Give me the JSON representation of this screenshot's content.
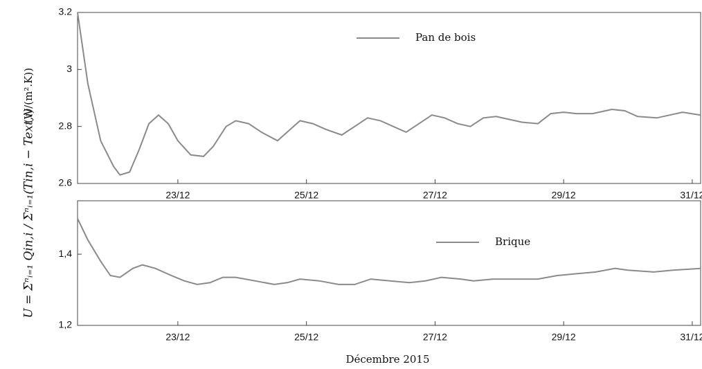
{
  "xlabel": "Décembre 2015",
  "ylabel": "U = Σⁿᵢ₌₁ Qin,i / Σⁿᵢ₌₁(Tin,i − Text,i)",
  "yunit": "(W/(m².K))",
  "chart_data": [
    {
      "type": "line",
      "xlim": [
        21.44,
        31.13
      ],
      "xticks": [
        {
          "value": 23,
          "label": "23/12"
        },
        {
          "value": 25,
          "label": "25/12"
        },
        {
          "value": 27,
          "label": "27/12"
        },
        {
          "value": 29,
          "label": "29/12"
        },
        {
          "value": 31,
          "label": "31/12"
        }
      ],
      "ylim": [
        2.6,
        3.2
      ],
      "yticks": [
        2.6,
        2.8,
        3,
        3.2
      ],
      "series": [
        {
          "name": "Pan de bois",
          "color": "#8a8a8a",
          "x": [
            21.44,
            21.6,
            21.8,
            22.0,
            22.1,
            22.25,
            22.4,
            22.55,
            22.7,
            22.85,
            23.0,
            23.2,
            23.4,
            23.55,
            23.75,
            23.9,
            24.1,
            24.3,
            24.55,
            24.75,
            24.9,
            25.1,
            25.3,
            25.55,
            25.75,
            25.95,
            26.15,
            26.35,
            26.55,
            26.75,
            26.95,
            27.15,
            27.35,
            27.55,
            27.75,
            27.95,
            28.15,
            28.35,
            28.6,
            28.8,
            29.0,
            29.2,
            29.45,
            29.75,
            29.95,
            30.15,
            30.45,
            30.65,
            30.85,
            31.13
          ],
          "values": [
            3.2,
            2.95,
            2.75,
            2.66,
            2.63,
            2.64,
            2.72,
            2.81,
            2.84,
            2.81,
            2.75,
            2.7,
            2.695,
            2.73,
            2.8,
            2.82,
            2.81,
            2.78,
            2.75,
            2.79,
            2.82,
            2.81,
            2.79,
            2.77,
            2.8,
            2.83,
            2.82,
            2.8,
            2.78,
            2.81,
            2.84,
            2.83,
            2.81,
            2.8,
            2.83,
            2.835,
            2.825,
            2.815,
            2.81,
            2.845,
            2.85,
            2.845,
            2.845,
            2.86,
            2.855,
            2.835,
            2.83,
            2.84,
            2.85,
            2.84
          ]
        }
      ]
    },
    {
      "type": "line",
      "xlim": [
        21.44,
        31.13
      ],
      "xticks": [
        {
          "value": 23,
          "label": "23/12"
        },
        {
          "value": 25,
          "label": "25/12"
        },
        {
          "value": 27,
          "label": "27/12"
        },
        {
          "value": 29,
          "label": "29/12"
        },
        {
          "value": 31,
          "label": "31/12"
        }
      ],
      "ylim": [
        1.2,
        1.55
      ],
      "yticks": [
        {
          "value": 1.2,
          "label": "1,2"
        },
        {
          "value": 1.4,
          "label": "1,4"
        }
      ],
      "series": [
        {
          "name": "Brique",
          "color": "#8a8a8a",
          "x": [
            21.44,
            21.6,
            21.8,
            21.95,
            22.1,
            22.3,
            22.45,
            22.65,
            22.9,
            23.1,
            23.3,
            23.5,
            23.7,
            23.9,
            24.2,
            24.5,
            24.7,
            24.9,
            25.2,
            25.5,
            25.75,
            26.0,
            26.3,
            26.6,
            26.85,
            27.1,
            27.4,
            27.6,
            27.9,
            28.2,
            28.6,
            28.9,
            29.2,
            29.5,
            29.8,
            30.0,
            30.4,
            30.7,
            31.13
          ],
          "values": [
            1.5,
            1.44,
            1.38,
            1.34,
            1.335,
            1.36,
            1.37,
            1.36,
            1.34,
            1.325,
            1.315,
            1.32,
            1.335,
            1.335,
            1.325,
            1.315,
            1.32,
            1.33,
            1.325,
            1.315,
            1.315,
            1.33,
            1.325,
            1.32,
            1.325,
            1.335,
            1.33,
            1.325,
            1.33,
            1.33,
            1.33,
            1.34,
            1.345,
            1.35,
            1.36,
            1.355,
            1.35,
            1.355,
            1.36
          ]
        }
      ]
    }
  ]
}
